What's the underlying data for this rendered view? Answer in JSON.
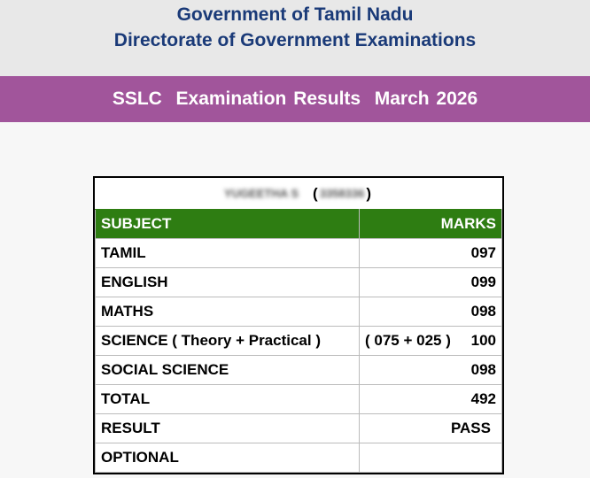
{
  "header": {
    "line1": "Government of Tamil Nadu",
    "line2": "Directorate of Government Examinations"
  },
  "banner": {
    "title": "SSLC  Examination Results  March 2026"
  },
  "student": {
    "name_blurred": "YUGEETHA S",
    "regno_blurred": "3358336",
    "open_paren": "(",
    "close_paren": ")"
  },
  "table": {
    "col_subject": "SUBJECT",
    "col_marks": "MARKS",
    "rows": [
      {
        "subject": "TAMIL",
        "marks": "097"
      },
      {
        "subject": "ENGLISH",
        "marks": "099"
      },
      {
        "subject": "MATHS",
        "marks": "098"
      },
      {
        "subject": "SCIENCE ( Theory + Practical )",
        "breakdown": "( 075 + 025 )",
        "marks": "100"
      },
      {
        "subject": "SOCIAL SCIENCE",
        "marks": "098"
      },
      {
        "subject": "TOTAL",
        "marks": "492"
      },
      {
        "subject": "RESULT",
        "marks": "PASS"
      },
      {
        "subject": "OPTIONAL",
        "marks": ""
      }
    ]
  },
  "colors": {
    "header_bg": "#e8e8e8",
    "header_text": "#1a3a78",
    "banner_bg": "#a1559b",
    "table_header_bg": "#2e7d12"
  }
}
